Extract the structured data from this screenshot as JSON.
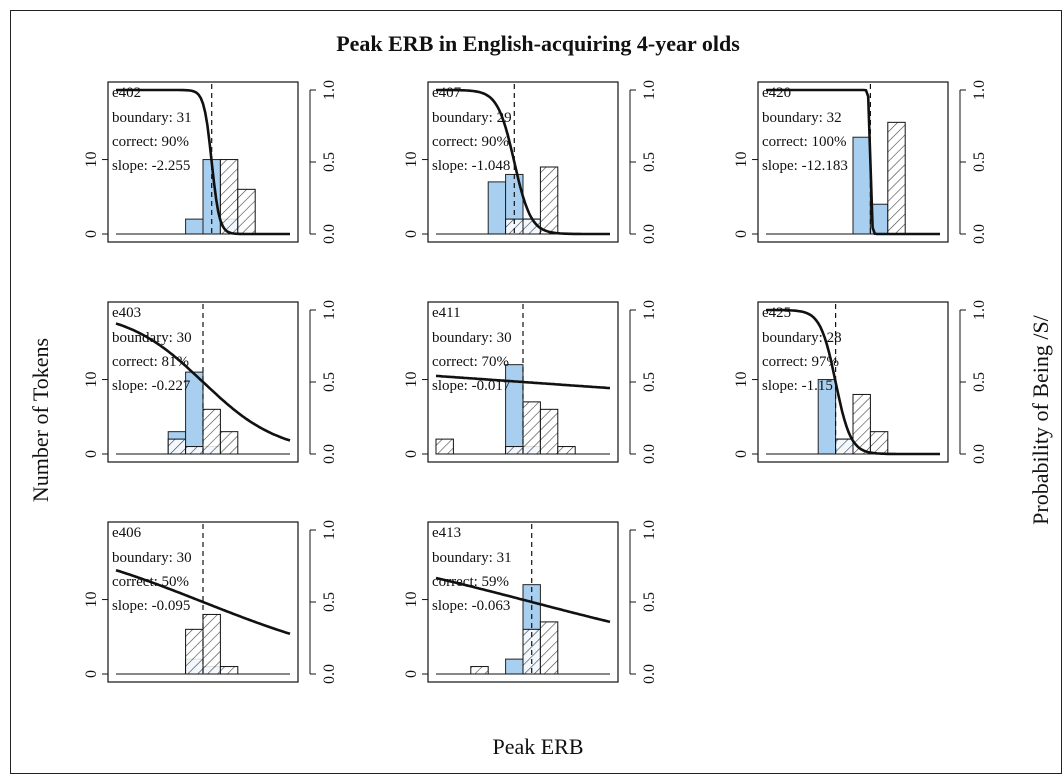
{
  "figure": {
    "title": "Peak ERB in English-acquiring 4-year olds",
    "xlabel": "Peak ERB",
    "ylabel_left": "Number of Tokens",
    "ylabel_right": "Probability of Being /S/",
    "bar_color_s": "#a8cff0",
    "bar_color_hatch": "#111111"
  },
  "chart_data": [
    {
      "type": "bar",
      "id": "e402",
      "label": "e402",
      "lines": [
        "boundary: 31",
        "correct: 90%",
        "slope: -2.255"
      ],
      "boundary": 31,
      "slope": -2.255,
      "xlim": [
        20,
        40
      ],
      "left_ylim": [
        0,
        18
      ],
      "right_ylim": [
        0,
        1
      ],
      "left_ticks": [
        "0",
        "10"
      ],
      "right_ticks": [
        "0.0",
        "0.5",
        "1.0"
      ],
      "bin_width": 2,
      "bins": [
        28,
        30,
        32,
        34
      ],
      "series": [
        {
          "name": "blue",
          "values": [
            2,
            10,
            2,
            0
          ]
        },
        {
          "name": "hatched",
          "values": [
            0,
            0,
            10,
            6
          ]
        }
      ]
    },
    {
      "type": "bar",
      "id": "e407",
      "label": "e407",
      "lines": [
        "boundary: 29",
        "correct: 90%",
        "slope: -1.048"
      ],
      "boundary": 29,
      "slope": -1.048,
      "xlim": [
        20,
        40
      ],
      "left_ylim": [
        0,
        18
      ],
      "right_ylim": [
        0,
        1
      ],
      "left_ticks": [
        "0",
        "10"
      ],
      "right_ticks": [
        "0.0",
        "0.5",
        "1.0"
      ],
      "bin_width": 2,
      "bins": [
        26,
        28,
        30,
        32
      ],
      "series": [
        {
          "name": "blue",
          "values": [
            7,
            8,
            2,
            0
          ]
        },
        {
          "name": "hatched",
          "values": [
            0,
            2,
            2,
            9
          ]
        }
      ]
    },
    {
      "type": "bar",
      "id": "e420",
      "label": "e420",
      "lines": [
        "boundary: 32",
        "correct: 100%",
        "slope: -12.183"
      ],
      "boundary": 32,
      "slope": -12.183,
      "xlim": [
        20,
        40
      ],
      "left_ylim": [
        0,
        18
      ],
      "right_ylim": [
        0,
        1
      ],
      "left_ticks": [
        "0",
        "10"
      ],
      "right_ticks": [
        "0.0",
        "0.5",
        "1.0"
      ],
      "bin_width": 2,
      "bins": [
        30,
        32,
        34
      ],
      "series": [
        {
          "name": "blue",
          "values": [
            13,
            4,
            0
          ]
        },
        {
          "name": "hatched",
          "values": [
            0,
            0,
            15
          ]
        }
      ]
    },
    {
      "type": "bar",
      "id": "e403",
      "label": "e403",
      "lines": [
        "boundary: 30",
        "correct: 81%",
        "slope: -0.227"
      ],
      "boundary": 30,
      "slope": -0.227,
      "xlim": [
        20,
        40
      ],
      "left_ylim": [
        0,
        18
      ],
      "right_ylim": [
        0,
        1
      ],
      "left_ticks": [
        "0",
        "10"
      ],
      "right_ticks": [
        "0.0",
        "0.5",
        "1.0"
      ],
      "bin_width": 2,
      "bins": [
        26,
        28,
        30,
        32
      ],
      "series": [
        {
          "name": "blue",
          "values": [
            3,
            11,
            1,
            0
          ]
        },
        {
          "name": "hatched",
          "values": [
            2,
            1,
            6,
            3
          ]
        }
      ]
    },
    {
      "type": "bar",
      "id": "e411",
      "label": "e411",
      "lines": [
        "boundary: 30",
        "correct: 70%",
        "slope: -0.017"
      ],
      "boundary": 30,
      "slope": -0.017,
      "xlim": [
        20,
        40
      ],
      "left_ylim": [
        0,
        18
      ],
      "right_ylim": [
        0,
        1
      ],
      "left_ticks": [
        "0",
        "10"
      ],
      "right_ticks": [
        "0.0",
        "0.5",
        "1.0"
      ],
      "bin_width": 2,
      "bins": [
        20,
        28,
        30,
        32,
        34
      ],
      "series": [
        {
          "name": "blue",
          "values": [
            0,
            12,
            1,
            0,
            0
          ]
        },
        {
          "name": "hatched",
          "values": [
            2,
            1,
            7,
            6,
            1
          ]
        }
      ]
    },
    {
      "type": "bar",
      "id": "e425",
      "label": "e425",
      "lines": [
        "boundary: 28",
        "correct: 97%",
        "slope: -1.15"
      ],
      "boundary": 28,
      "slope": -1.15,
      "xlim": [
        20,
        40
      ],
      "left_ylim": [
        0,
        18
      ],
      "right_ylim": [
        0,
        1
      ],
      "left_ticks": [
        "0",
        "10"
      ],
      "right_ticks": [
        "0.0",
        "0.5",
        "1.0"
      ],
      "bin_width": 2,
      "bins": [
        26,
        28,
        30,
        32
      ],
      "series": [
        {
          "name": "blue",
          "values": [
            10,
            2,
            0,
            0
          ]
        },
        {
          "name": "hatched",
          "values": [
            0,
            2,
            8,
            3
          ]
        }
      ]
    },
    {
      "type": "bar",
      "id": "e406",
      "label": "e406",
      "lines": [
        "boundary: 30",
        "correct: 50%",
        "slope: -0.095"
      ],
      "boundary": 30,
      "slope": -0.095,
      "xlim": [
        20,
        40
      ],
      "left_ylim": [
        0,
        18
      ],
      "right_ylim": [
        0,
        1
      ],
      "left_ticks": [
        "0",
        "10"
      ],
      "right_ticks": [
        "0.0",
        "0.5",
        "1.0"
      ],
      "bin_width": 2,
      "bins": [
        28,
        30,
        32
      ],
      "series": [
        {
          "name": "blue",
          "values": [
            2,
            1,
            0
          ]
        },
        {
          "name": "hatched",
          "values": [
            6,
            8,
            1
          ]
        }
      ]
    },
    {
      "type": "bar",
      "id": "e413",
      "label": "e413",
      "lines": [
        "boundary: 31",
        "correct: 59%",
        "slope: -0.063"
      ],
      "boundary": 31,
      "slope": -0.063,
      "xlim": [
        20,
        40
      ],
      "left_ylim": [
        0,
        18
      ],
      "right_ylim": [
        0,
        1
      ],
      "left_ticks": [
        "0",
        "10"
      ],
      "right_ticks": [
        "0.0",
        "0.5",
        "1.0"
      ],
      "bin_width": 2,
      "bins": [
        24,
        28,
        30,
        32
      ],
      "series": [
        {
          "name": "blue",
          "values": [
            0,
            2,
            12,
            0
          ]
        },
        {
          "name": "hatched",
          "values": [
            1,
            0,
            6,
            7
          ]
        }
      ]
    }
  ]
}
